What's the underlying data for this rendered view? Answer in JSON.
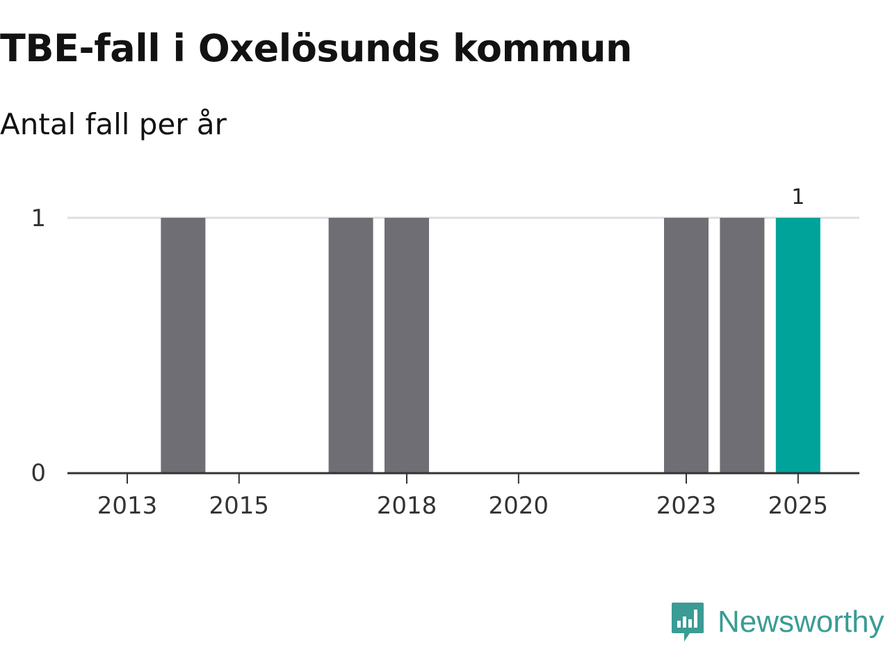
{
  "title": "TBE-fall i Oxelösunds kommun",
  "subtitle": "Antal fall per år",
  "brand": {
    "name": "Newsworthy",
    "icon": "bar-chart-speech-bubble-icon"
  },
  "colors": {
    "bar": "#6f6e74",
    "highlight": "#00a39a",
    "grid": "#dedde2",
    "axis": "#333333",
    "brand": "#3a9c94"
  },
  "chart_data": {
    "type": "bar",
    "title": "TBE-fall i Oxelösunds kommun",
    "subtitle": "Antal fall per år",
    "xlabel": "",
    "ylabel": "",
    "categories": [
      2013,
      2014,
      2015,
      2016,
      2017,
      2018,
      2019,
      2020,
      2021,
      2022,
      2023,
      2024,
      2025
    ],
    "values": [
      0,
      1,
      0,
      0,
      1,
      1,
      0,
      0,
      0,
      0,
      1,
      1,
      1
    ],
    "highlight_category": 2025,
    "ylim": [
      0,
      1
    ],
    "yticks": [
      0,
      1
    ],
    "xticks": [
      2013,
      2015,
      2018,
      2020,
      2023,
      2025
    ],
    "data_labels": [
      {
        "category": 2025,
        "text": "1"
      }
    ],
    "grid": true,
    "legend": "none"
  }
}
